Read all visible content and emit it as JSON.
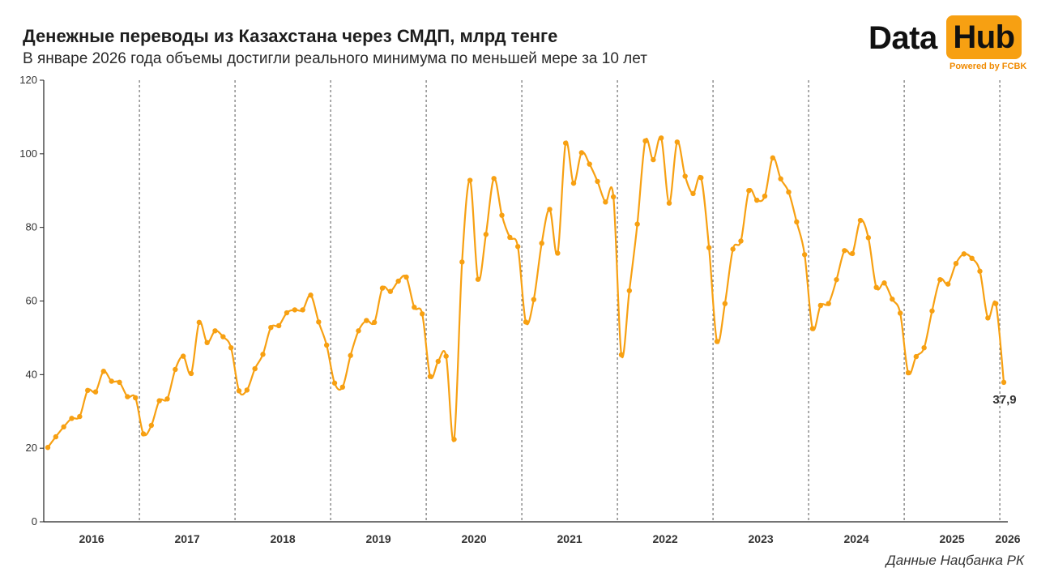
{
  "header": {
    "title": "Денежные переводы из Казахстана через СМДП, млрд тенге",
    "subtitle": "В январе 2026 года объемы достигли реального минимума по меньшей мере за 10 лет"
  },
  "logo": {
    "word1": "Data",
    "word2": "Hub",
    "powered": "Powered by FCBK"
  },
  "source": "Данные Нацбанка РК",
  "colors": {
    "line": "#f7a012",
    "axis": "#222222",
    "separator": "#555555",
    "logo_bg": "#f7a012"
  },
  "chart_data": {
    "type": "line",
    "title": "Денежные переводы из Казахстана через СМДП, млрд тенге",
    "ylim": [
      0,
      120
    ],
    "y_ticks": [
      0,
      20,
      40,
      60,
      80,
      100,
      120
    ],
    "x_start": "2016-01",
    "x_end": "2026-01",
    "frequency": "monthly",
    "years": [
      "2016",
      "2017",
      "2018",
      "2019",
      "2020",
      "2021",
      "2022",
      "2023",
      "2024",
      "2025",
      "2026"
    ],
    "grid": false,
    "year_separators": true,
    "last_value_label": "37,9",
    "series": [
      {
        "values": [
          20.2,
          23.1,
          25.8,
          28.1,
          28.6,
          35.7,
          35.3,
          40.9,
          38.2,
          37.9,
          34.0,
          33.7,
          23.9,
          26.2,
          32.9,
          33.4,
          41.4,
          45.0,
          40.3,
          54.2,
          48.7,
          51.9,
          50.3,
          47.3,
          35.6,
          35.8,
          41.6,
          45.5,
          52.8,
          53.3,
          56.8,
          57.6,
          57.6,
          61.6,
          54.3,
          48.0,
          37.7,
          36.6,
          45.2,
          51.9,
          54.7,
          54.2,
          63.5,
          62.6,
          65.4,
          66.5,
          58.3,
          56.5,
          39.5,
          43.6,
          45.0,
          22.4,
          70.6,
          92.8,
          65.9,
          78.1,
          93.3,
          83.3,
          77.3,
          74.8,
          54.3,
          60.4,
          75.7,
          84.9,
          73.0,
          102.9,
          92.0,
          100.3,
          97.2,
          92.5,
          86.9,
          88.3,
          45.4,
          62.8,
          80.9,
          103.5,
          98.4,
          104.3,
          86.6,
          103.2,
          93.9,
          89.2,
          93.5,
          74.5,
          49.0,
          59.3,
          74.1,
          76.3,
          90.0,
          87.4,
          88.5,
          98.9,
          93.2,
          89.6,
          81.5,
          72.6,
          52.5,
          58.8,
          59.3,
          65.8,
          73.7,
          72.9,
          81.9,
          77.2,
          63.7,
          64.9,
          60.5,
          56.7,
          40.5,
          44.9,
          47.3,
          57.3,
          65.8,
          64.6,
          70.2,
          72.8,
          71.6,
          68.1,
          55.4,
          59.3,
          37.9
        ]
      }
    ]
  }
}
